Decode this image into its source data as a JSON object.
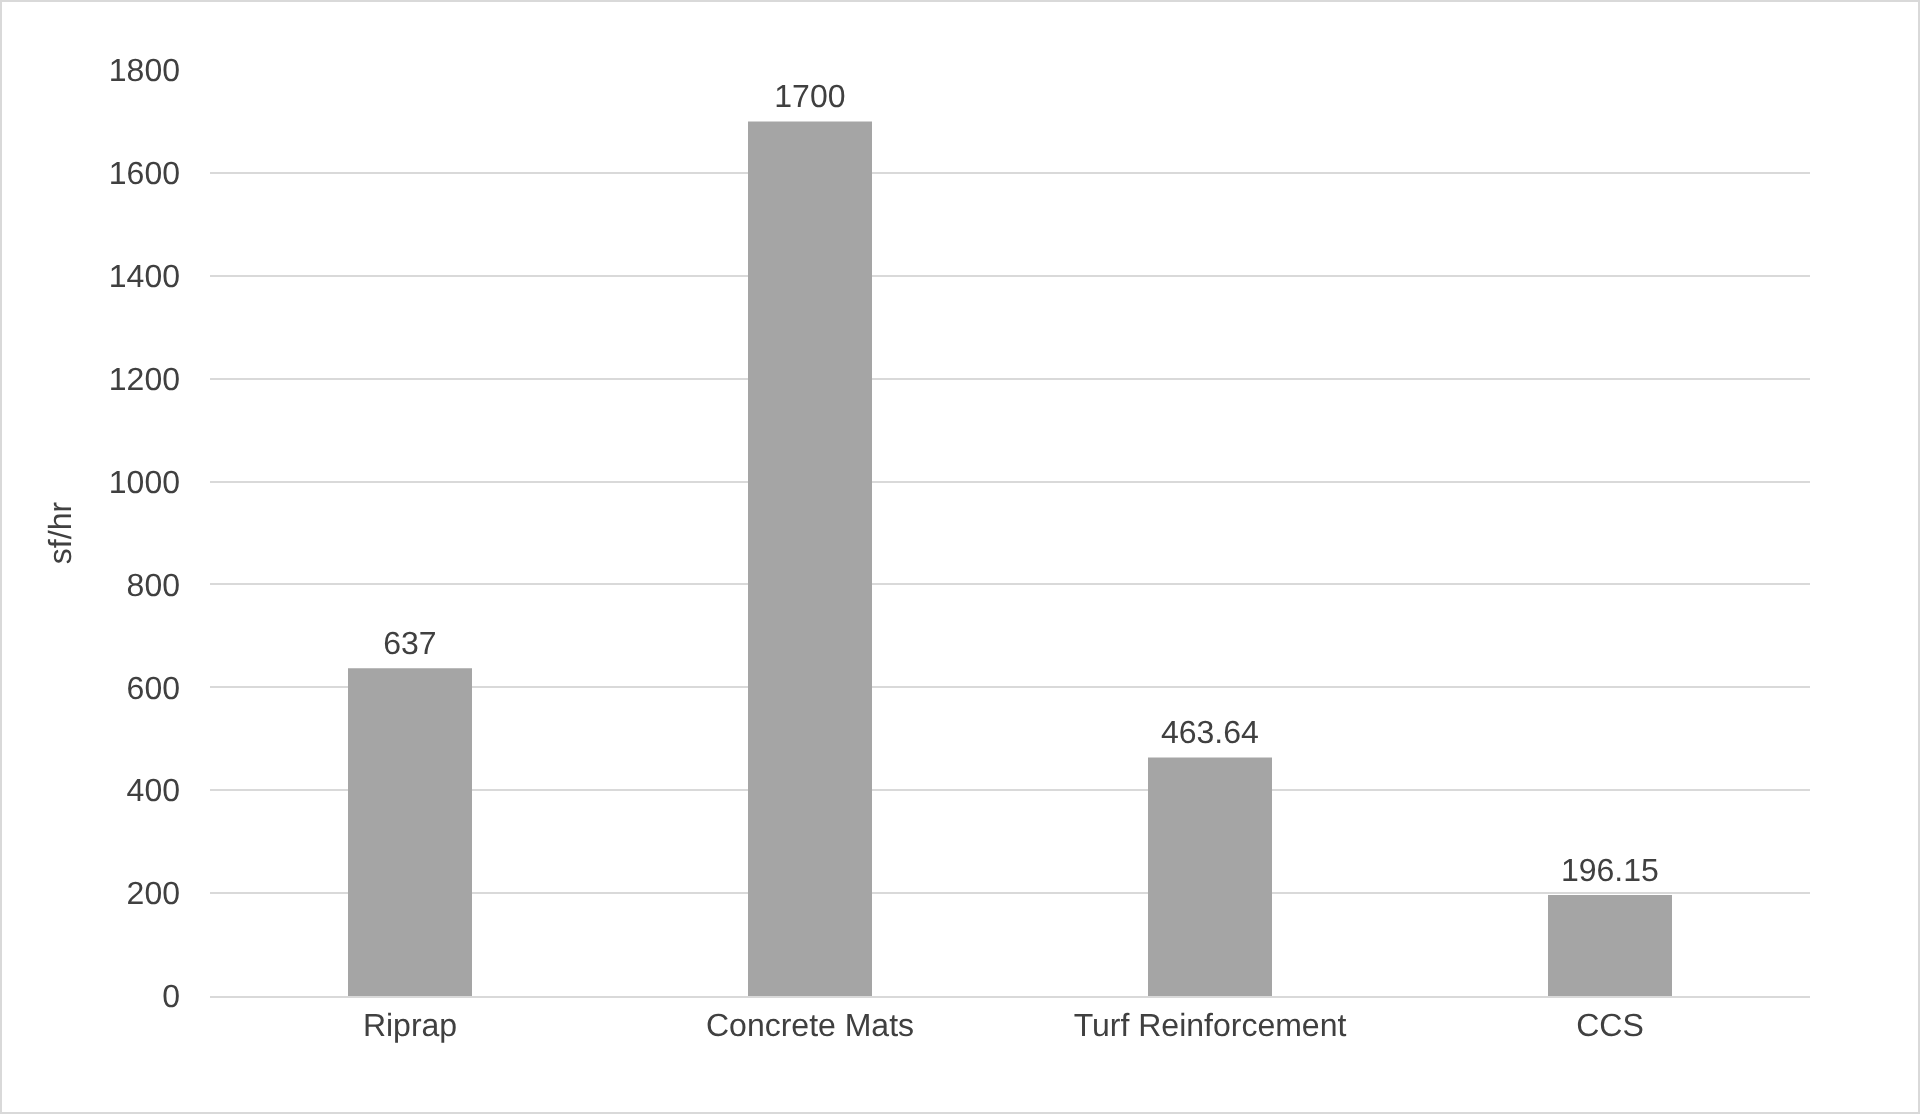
{
  "chart_data": {
    "type": "bar",
    "ylabel": "sf/hr",
    "categories": [
      "Riprap",
      "Concrete Mats",
      "Turf Reinforcement",
      "CCS"
    ],
    "values": [
      637,
      1700,
      463.64,
      196.15
    ],
    "color": "#a5a5a5",
    "ylim": [
      0,
      1800
    ],
    "yticks": [
      0,
      200,
      400,
      600,
      800,
      1000,
      1200,
      1400,
      1600,
      1800
    ],
    "grid": "y",
    "data_labels": true
  }
}
